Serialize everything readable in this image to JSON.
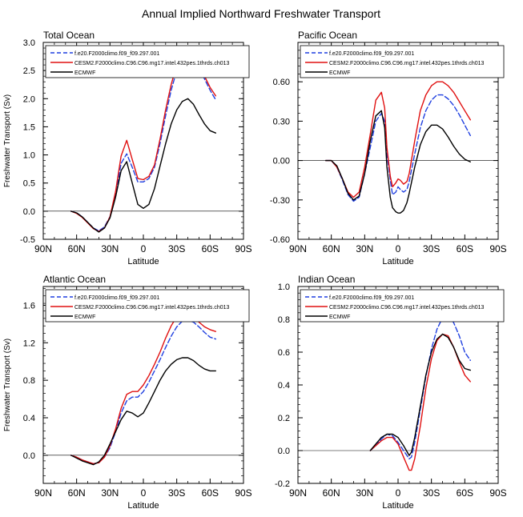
{
  "figure": {
    "title": "Annual Implied Northward Freshwater Transport"
  },
  "legend": {
    "entries": [
      {
        "label": "f.e20.F2000climo.f09_f09.297.001",
        "color": "#1f3fe0",
        "dash": "dashed"
      },
      {
        "label": "CESM2.F2000climo.C96.C96.mg17.intel.432pes.1thrds.ch013",
        "color": "#e01010",
        "dash": "solid"
      },
      {
        "label": "ECMWF",
        "color": "#000000",
        "dash": "solid"
      }
    ]
  },
  "chart_data": [
    {
      "type": "line",
      "title": "Total Ocean",
      "xlabel": "Latitude",
      "ylabel": "Freshwater Transport (Sv)",
      "xlim": [
        90,
        -90
      ],
      "ylim": [
        -0.5,
        3.0
      ],
      "xticks": [
        90,
        60,
        30,
        0,
        -30,
        -60,
        -90
      ],
      "xticklabels": [
        "90N",
        "60N",
        "30N",
        "0",
        "30S",
        "60S",
        "90S"
      ],
      "yticks": [
        -0.5,
        0.0,
        0.5,
        1.0,
        1.5,
        2.0,
        2.5,
        3.0
      ],
      "yticklabels": [
        "-0.5",
        "0.0",
        "0.5",
        "1.0",
        "1.5",
        "2.0",
        "2.5",
        "3.0"
      ],
      "series": [
        {
          "name": "f.e20.F2000climo.f09_f09.297.001",
          "x": [
            65,
            60,
            55,
            50,
            45,
            40,
            35,
            30,
            25,
            20,
            15,
            10,
            5,
            0,
            -5,
            -10,
            -15,
            -20,
            -25,
            -30,
            -35,
            -40,
            -45,
            -50,
            -55,
            -60,
            -65
          ],
          "values": [
            0.0,
            -0.03,
            -0.1,
            -0.2,
            -0.3,
            -0.35,
            -0.28,
            -0.1,
            0.3,
            0.85,
            1.02,
            0.78,
            0.52,
            0.52,
            0.58,
            0.78,
            1.2,
            1.7,
            2.15,
            2.5,
            2.72,
            2.75,
            2.7,
            2.55,
            2.35,
            2.15,
            1.98
          ]
        },
        {
          "name": "CESM2.F2000climo.C96.C96.mg17.intel.432pes.1thrds.ch013",
          "x": [
            65,
            60,
            55,
            50,
            45,
            40,
            35,
            30,
            25,
            20,
            15,
            10,
            5,
            0,
            -5,
            -10,
            -15,
            -20,
            -25,
            -30,
            -35,
            -40,
            -45,
            -50,
            -55,
            -60,
            -65
          ],
          "values": [
            0.0,
            -0.04,
            -0.11,
            -0.21,
            -0.31,
            -0.36,
            -0.3,
            -0.1,
            0.35,
            0.98,
            1.26,
            0.92,
            0.58,
            0.56,
            0.62,
            0.82,
            1.28,
            1.8,
            2.25,
            2.6,
            2.8,
            2.83,
            2.78,
            2.6,
            2.4,
            2.2,
            2.05
          ]
        },
        {
          "name": "ECMWF",
          "x": [
            65,
            60,
            55,
            50,
            45,
            40,
            35,
            30,
            25,
            20,
            15,
            10,
            5,
            0,
            -5,
            -10,
            -15,
            -20,
            -25,
            -30,
            -35,
            -40,
            -45,
            -50,
            -55,
            -60,
            -65
          ],
          "values": [
            0.0,
            -0.03,
            -0.1,
            -0.2,
            -0.3,
            -0.37,
            -0.3,
            -0.12,
            0.25,
            0.72,
            0.88,
            0.5,
            0.12,
            0.05,
            0.12,
            0.4,
            0.8,
            1.2,
            1.55,
            1.8,
            1.95,
            2.0,
            1.9,
            1.72,
            1.55,
            1.43,
            1.39
          ]
        }
      ]
    },
    {
      "type": "line",
      "title": "Pacific Ocean",
      "xlabel": "Latitude",
      "ylabel": "",
      "xlim": [
        90,
        -90
      ],
      "ylim": [
        -0.6,
        0.9
      ],
      "xticks": [
        90,
        60,
        30,
        0,
        -30,
        -60,
        -90
      ],
      "xticklabels": [
        "90N",
        "60N",
        "30N",
        "0",
        "30S",
        "60S",
        "90S"
      ],
      "yticks": [
        -0.6,
        -0.3,
        0.0,
        0.3,
        0.6
      ],
      "yticklabels": [
        "-0.60",
        "-0.30",
        "0.00",
        "0.30",
        "0.60"
      ],
      "series": [
        {
          "name": "f.e20.F2000climo.f09_f09.297.001",
          "x": [
            65,
            60,
            55,
            50,
            45,
            40,
            35,
            30,
            25,
            20,
            15,
            12,
            10,
            7,
            5,
            2,
            0,
            -2,
            -5,
            -8,
            -10,
            -15,
            -20,
            -25,
            -30,
            -35,
            -40,
            -45,
            -50,
            -55,
            -60,
            -65
          ],
          "values": [
            0.0,
            0.0,
            -0.05,
            -0.15,
            -0.26,
            -0.31,
            -0.28,
            -0.1,
            0.1,
            0.3,
            0.36,
            0.3,
            0.05,
            -0.15,
            -0.26,
            -0.24,
            -0.2,
            -0.22,
            -0.24,
            -0.22,
            -0.16,
            0.05,
            0.25,
            0.38,
            0.46,
            0.5,
            0.5,
            0.47,
            0.42,
            0.35,
            0.27,
            0.19
          ]
        },
        {
          "name": "CESM2.F2000climo.C96.C96.mg17.intel.432pes.1thrds.ch013",
          "x": [
            65,
            60,
            55,
            50,
            45,
            40,
            35,
            30,
            25,
            20,
            15,
            12,
            10,
            7,
            5,
            2,
            0,
            -2,
            -5,
            -8,
            -10,
            -15,
            -20,
            -25,
            -30,
            -35,
            -40,
            -45,
            -50,
            -55,
            -60,
            -65
          ],
          "values": [
            0.0,
            0.0,
            -0.05,
            -0.14,
            -0.24,
            -0.28,
            -0.24,
            -0.05,
            0.2,
            0.46,
            0.52,
            0.4,
            0.1,
            -0.12,
            -0.2,
            -0.17,
            -0.14,
            -0.15,
            -0.18,
            -0.16,
            -0.1,
            0.15,
            0.38,
            0.5,
            0.57,
            0.6,
            0.6,
            0.57,
            0.52,
            0.45,
            0.38,
            0.31
          ]
        },
        {
          "name": "ECMWF",
          "x": [
            65,
            60,
            55,
            50,
            45,
            40,
            35,
            30,
            25,
            20,
            15,
            12,
            10,
            7,
            5,
            2,
            0,
            -2,
            -5,
            -8,
            -10,
            -15,
            -20,
            -25,
            -30,
            -35,
            -40,
            -45,
            -50,
            -55,
            -60,
            -65
          ],
          "values": [
            0.0,
            0.0,
            -0.04,
            -0.14,
            -0.25,
            -0.3,
            -0.27,
            -0.1,
            0.15,
            0.34,
            0.38,
            0.25,
            -0.05,
            -0.28,
            -0.36,
            -0.39,
            -0.4,
            -0.4,
            -0.38,
            -0.32,
            -0.25,
            -0.05,
            0.12,
            0.22,
            0.27,
            0.27,
            0.24,
            0.18,
            0.11,
            0.05,
            0.01,
            -0.01
          ]
        }
      ]
    },
    {
      "type": "line",
      "title": "Atlantic Ocean",
      "xlabel": "Latitude",
      "ylabel": "Freshwater Transport (Sv)",
      "xlim": [
        90,
        -90
      ],
      "ylim": [
        -0.3,
        1.8
      ],
      "xticks": [
        90,
        60,
        30,
        0,
        -30,
        -60,
        -90
      ],
      "xticklabels": [
        "90N",
        "60N",
        "30N",
        "0",
        "30S",
        "60S",
        "90S"
      ],
      "yticks": [
        0.0,
        0.4,
        0.8,
        1.2,
        1.6
      ],
      "yticklabels": [
        "0.0",
        "0.4",
        "0.8",
        "1.2",
        "1.6"
      ],
      "series": [
        {
          "name": "f.e20.F2000climo.f09_f09.297.001",
          "x": [
            65,
            60,
            55,
            50,
            45,
            40,
            35,
            30,
            25,
            20,
            15,
            10,
            5,
            0,
            -5,
            -10,
            -15,
            -20,
            -25,
            -30,
            -35,
            -40,
            -45,
            -50,
            -55,
            -60,
            -65
          ],
          "values": [
            0.0,
            -0.02,
            -0.05,
            -0.07,
            -0.09,
            -0.08,
            -0.02,
            0.08,
            0.25,
            0.45,
            0.58,
            0.62,
            0.62,
            0.68,
            0.78,
            0.9,
            1.02,
            1.15,
            1.27,
            1.37,
            1.43,
            1.44,
            1.42,
            1.37,
            1.31,
            1.26,
            1.24
          ]
        },
        {
          "name": "CESM2.F2000climo.C96.C96.mg17.intel.432pes.1thrds.ch013",
          "x": [
            65,
            60,
            55,
            50,
            45,
            40,
            35,
            30,
            25,
            20,
            15,
            10,
            5,
            0,
            -5,
            -10,
            -15,
            -20,
            -25,
            -30,
            -35,
            -40,
            -45,
            -50,
            -55,
            -60,
            -65
          ],
          "values": [
            0.0,
            -0.02,
            -0.05,
            -0.07,
            -0.09,
            -0.08,
            -0.02,
            0.1,
            0.28,
            0.5,
            0.65,
            0.68,
            0.68,
            0.75,
            0.85,
            0.97,
            1.1,
            1.25,
            1.38,
            1.48,
            1.53,
            1.52,
            1.48,
            1.42,
            1.37,
            1.34,
            1.32
          ]
        },
        {
          "name": "ECMWF",
          "x": [
            65,
            60,
            55,
            50,
            45,
            40,
            35,
            30,
            25,
            20,
            15,
            10,
            5,
            0,
            -5,
            -10,
            -15,
            -20,
            -25,
            -30,
            -35,
            -40,
            -45,
            -50,
            -55,
            -60,
            -65
          ],
          "values": [
            0.0,
            -0.03,
            -0.06,
            -0.08,
            -0.1,
            -0.07,
            0.0,
            0.12,
            0.25,
            0.38,
            0.47,
            0.45,
            0.41,
            0.45,
            0.56,
            0.68,
            0.8,
            0.9,
            0.97,
            1.02,
            1.04,
            1.04,
            1.01,
            0.96,
            0.92,
            0.9,
            0.9
          ]
        }
      ]
    },
    {
      "type": "line",
      "title": "Indian Ocean",
      "xlabel": "Latitude",
      "ylabel": "",
      "xlim": [
        90,
        -90
      ],
      "ylim": [
        -0.2,
        1.0
      ],
      "xticks": [
        90,
        60,
        30,
        0,
        -30,
        -60,
        -90
      ],
      "xticklabels": [
        "90N",
        "60N",
        "30N",
        "0",
        "30S",
        "60S",
        "90S"
      ],
      "yticks": [
        -0.2,
        0.0,
        0.2,
        0.4,
        0.6,
        0.8,
        1.0
      ],
      "yticklabels": [
        "-0.2",
        "0.0",
        "0.2",
        "0.4",
        "0.6",
        "0.8",
        "1.0"
      ],
      "series": [
        {
          "name": "f.e20.F2000climo.f09_f09.297.001",
          "x": [
            25,
            20,
            15,
            10,
            5,
            0,
            -5,
            -10,
            -12,
            -15,
            -20,
            -25,
            -30,
            -35,
            -40,
            -45,
            -50,
            -55,
            -60,
            -65
          ],
          "values": [
            0.0,
            0.03,
            0.07,
            0.1,
            0.09,
            0.05,
            0.0,
            -0.05,
            -0.04,
            0.05,
            0.25,
            0.45,
            0.62,
            0.74,
            0.81,
            0.82,
            0.78,
            0.7,
            0.6,
            0.55
          ]
        },
        {
          "name": "CESM2.F2000climo.C96.C96.mg17.intel.432pes.1thrds.ch013",
          "x": [
            25,
            20,
            15,
            10,
            5,
            0,
            -5,
            -10,
            -12,
            -15,
            -20,
            -25,
            -30,
            -35,
            -40,
            -45,
            -50,
            -55,
            -60,
            -65
          ],
          "values": [
            0.0,
            0.03,
            0.06,
            0.08,
            0.08,
            0.04,
            -0.04,
            -0.12,
            -0.12,
            -0.05,
            0.15,
            0.38,
            0.56,
            0.67,
            0.71,
            0.7,
            0.63,
            0.54,
            0.46,
            0.42
          ]
        },
        {
          "name": "ECMWF",
          "x": [
            25,
            20,
            15,
            10,
            5,
            0,
            -5,
            -10,
            -12,
            -15,
            -20,
            -25,
            -30,
            -35,
            -40,
            -45,
            -50,
            -55,
            -60,
            -65
          ],
          "values": [
            0.0,
            0.04,
            0.08,
            0.1,
            0.1,
            0.08,
            0.03,
            -0.03,
            -0.01,
            0.08,
            0.27,
            0.46,
            0.6,
            0.68,
            0.71,
            0.69,
            0.63,
            0.55,
            0.5,
            0.49
          ]
        }
      ]
    }
  ]
}
